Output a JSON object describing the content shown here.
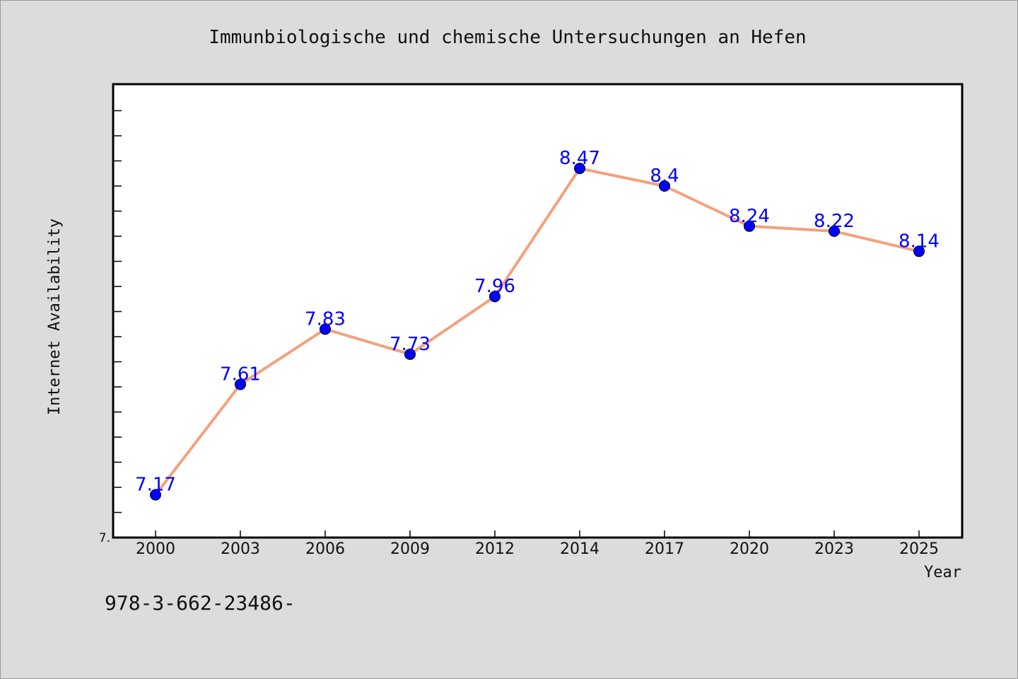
{
  "chart_data": {
    "type": "line",
    "title": "Immunbiologische und chemische Untersuchungen an Hefen",
    "xlabel": "Year",
    "ylabel": "Internet Availability",
    "categories": [
      "2000",
      "2003",
      "2006",
      "2009",
      "2012",
      "2014",
      "2017",
      "2020",
      "2023",
      "2025"
    ],
    "series": [
      {
        "values": [
          7.17,
          7.61,
          7.83,
          7.73,
          7.96,
          8.47,
          8.4,
          8.24,
          8.22,
          8.14
        ],
        "line_color": "#f4a07e",
        "marker_color": "#0000ff"
      }
    ],
    "data_labels": [
      "7.17",
      "7.61",
      "7.83",
      "7.73",
      "7.96",
      "8.47",
      "8.4",
      "8.24",
      "8.22",
      "8.14"
    ],
    "ylim": [
      7.0,
      8.8
    ],
    "y_tick_labels": [
      {
        "value": 7.0,
        "label": "7."
      }
    ],
    "y_minor_step": 0.1,
    "grid": false,
    "legend": "none"
  },
  "footer": {
    "text": "978-3-662-23486-"
  },
  "colors": {
    "background": "#dcdcdc",
    "plot_background": "#ffffff",
    "line": "#f4a07e",
    "marker": "#0000ff",
    "label": "#0000ff"
  }
}
